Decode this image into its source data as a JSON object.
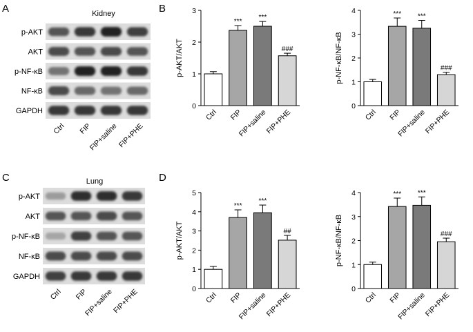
{
  "panels": {
    "A": {
      "letter": "A",
      "tissue": "Kidney",
      "bands": [
        "p-AKT",
        "AKT",
        "p-NF-κB",
        "NF-κB",
        "GAPDH"
      ],
      "lanes": [
        "Ctrl",
        "FIP",
        "FIP+saline",
        "FIP+PHE"
      ]
    },
    "C": {
      "letter": "C",
      "tissue": "Lung",
      "bands": [
        "p-AKT",
        "AKT",
        "p-NF-κB",
        "NF-κB",
        "GAPDH"
      ],
      "lanes": [
        "Ctrl",
        "FIP",
        "FIP+saline",
        "FIP+PHE"
      ]
    },
    "B": {
      "letter": "B"
    },
    "D": {
      "letter": "D"
    }
  },
  "bar_colors": [
    "#ffffff",
    "#a6a6a6",
    "#7a7a7a",
    "#d6d6d6"
  ],
  "blot_band_intensity": {
    "A": [
      [
        0.7,
        0.85,
        0.95,
        0.8
      ],
      [
        0.75,
        0.7,
        0.75,
        0.7
      ],
      [
        0.55,
        0.95,
        0.95,
        0.85
      ],
      [
        0.75,
        0.6,
        0.55,
        0.6
      ],
      [
        0.85,
        0.85,
        0.85,
        0.85
      ]
    ],
    "C": [
      [
        0.35,
        0.9,
        0.9,
        0.85
      ],
      [
        0.7,
        0.7,
        0.75,
        0.7
      ],
      [
        0.3,
        0.8,
        0.7,
        0.7
      ],
      [
        0.75,
        0.75,
        0.75,
        0.75
      ],
      [
        0.8,
        0.85,
        0.85,
        0.85
      ]
    ]
  },
  "chart_data": [
    {
      "panel": "B",
      "type": "bar",
      "categories": [
        "Ctrl",
        "FIP",
        "FIP+saline",
        "FIP+PHE"
      ],
      "values": [
        1.0,
        2.37,
        2.5,
        1.57
      ],
      "errors": [
        0.07,
        0.15,
        0.15,
        0.08
      ],
      "annotations": [
        "",
        "***",
        "***",
        "###"
      ],
      "ylabel": "p-AKT/AKT",
      "ylim": [
        0,
        3
      ],
      "yticks": [
        0,
        1,
        2,
        3
      ]
    },
    {
      "panel": "B",
      "type": "bar",
      "categories": [
        "Ctrl",
        "FIP",
        "FIP+saline",
        "FIP+PHE"
      ],
      "values": [
        1.0,
        3.33,
        3.25,
        1.3
      ],
      "errors": [
        0.1,
        0.35,
        0.33,
        0.1
      ],
      "annotations": [
        "",
        "***",
        "***",
        "###"
      ],
      "ylabel": "p-NF-κB/NF-κB",
      "ylim": [
        0,
        4
      ],
      "yticks": [
        0,
        1,
        2,
        3,
        4
      ]
    },
    {
      "panel": "D",
      "type": "bar",
      "categories": [
        "Ctrl",
        "FIP",
        "FIP+saline",
        "FIP+PHE"
      ],
      "values": [
        1.0,
        3.7,
        3.95,
        2.52
      ],
      "errors": [
        0.15,
        0.4,
        0.4,
        0.25
      ],
      "annotations": [
        "",
        "***",
        "***",
        "##"
      ],
      "ylabel": "p-AKT/AKT",
      "ylim": [
        0,
        5
      ],
      "yticks": [
        0,
        1,
        2,
        3,
        4,
        5
      ]
    },
    {
      "panel": "D",
      "type": "bar",
      "categories": [
        "Ctrl",
        "FIP",
        "FIP+saline",
        "FIP+PHE"
      ],
      "values": [
        1.0,
        3.42,
        3.47,
        1.95
      ],
      "errors": [
        0.1,
        0.35,
        0.35,
        0.15
      ],
      "annotations": [
        "",
        "***",
        "***",
        "###"
      ],
      "ylabel": "p-NF-κB/NF-κB",
      "ylim": [
        0,
        4
      ],
      "yticks": [
        0,
        1,
        2,
        3,
        4
      ]
    }
  ]
}
